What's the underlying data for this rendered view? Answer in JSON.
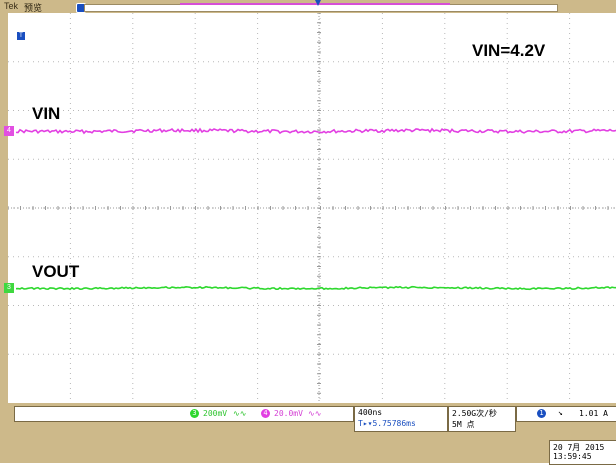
{
  "header": {
    "brand": "Tek",
    "run_state": "预览"
  },
  "plot": {
    "title_label": "VIN=4.2V",
    "trace_vin_label": "VIN",
    "trace_vout_label": "VOUT",
    "ch4_marker": "4",
    "ch3_marker": "3",
    "trigger_marker": "T"
  },
  "status": {
    "ch3": {
      "id": "3",
      "scale": "200mV",
      "coupling": "∿∿"
    },
    "ch4": {
      "id": "4",
      "scale": "20.0mV",
      "coupling": "∿∿"
    },
    "timebase": "400ns",
    "trigger_position": "T▸▾5.75786ms",
    "sample_rate": "2.50G次/秒",
    "record_length": "5M 点",
    "trigger_channel": "1",
    "trigger_slope": "↘",
    "trigger_level": "1.01 A",
    "date": "20 7月  2015",
    "time": "13:59:45"
  },
  "colors": {
    "vin_trace": "#e23fe2",
    "vout_trace": "#2ed82e",
    "bezel": "#cdb98a",
    "trigger": "#1a4fc0"
  }
}
